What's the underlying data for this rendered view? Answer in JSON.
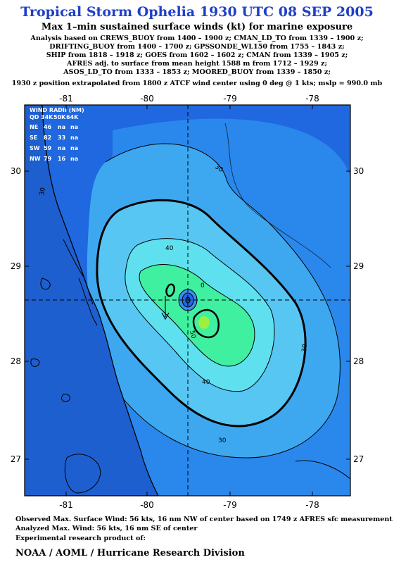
{
  "header": {
    "title": "Tropical Storm Ophelia 1930 UTC 08 SEP 2005",
    "subtitle": "Max 1–min sustained surface winds (kt) for marine exposure",
    "analysis_lines": [
      "Analysis based on  CREWS_BUOY from 1400 – 1900 z;  CMAN_LD_TO from 1339 – 1900 z;",
      "DRIFTING_BUOY from 1400 – 1700 z;  GPSSONDE_WL150 from 1755 – 1843 z;",
      "SHIP from 1818 – 1918 z;  GOES from 1602 – 1602 z;  CMAN from 1339 – 1905 z;",
      "AFRES adj. to surface from mean height 1588 m from 1712 – 1929 z;",
      "ASOS_LD_TO from 1333 – 1853 z;  MOORED_BUOY from 1339 – 1850 z;",
      "1930 z position extrapolated from 1800 z ATCF wind center using 0 deg @ 1 kts; mslp = 990.0 mb"
    ]
  },
  "map": {
    "x_ticks": [
      "-81",
      "-80",
      "-79",
      "-78"
    ],
    "y_ticks": [
      "30",
      "29",
      "28",
      "27"
    ],
    "storm_center": {
      "lon": -79.5,
      "lat": 28.6
    },
    "wind_radii": {
      "title": "WIND RADII (NM)",
      "header": [
        "QD",
        "34K",
        "50K",
        "64K"
      ],
      "rows": [
        [
          "NE",
          "46",
          "na",
          "na"
        ],
        [
          "SE",
          "82",
          "33",
          "na"
        ],
        [
          "SW",
          "59",
          "na",
          "na"
        ],
        [
          "NW",
          "79",
          "16",
          "na"
        ]
      ]
    },
    "contour_labels": [
      "30",
      "30",
      "30",
      "30",
      "40",
      "40",
      "50",
      "0"
    ],
    "colors": {
      "ocean_base": "#1f68e0",
      "land": "#1e5fd0",
      "high_wind": "#3ff0a0",
      "max_wind": "#9df040"
    }
  },
  "footer": {
    "line1": "Observed Max. Surface Wind: 56 kts, 16 nm NW of center based on 1749 z AFRES sfc measurement",
    "line2": "Analyzed Max. Wind: 56 kts, 16 nm SE of center",
    "line3": "Experimental research product of:",
    "org": "NOAA / AOML / Hurricane Research Division"
  }
}
